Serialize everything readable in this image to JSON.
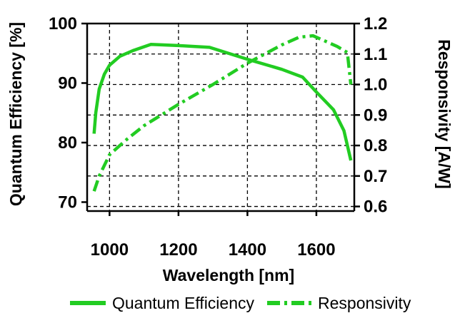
{
  "chart_data": {
    "type": "line",
    "xlabel": "Wavelength [nm]",
    "ylabel_left": "Quantum Efficiency [%]",
    "ylabel_right": "Responsivity [A/W]",
    "xlim": [
      935,
      1710
    ],
    "ylim_left": [
      68.5,
      100
    ],
    "ylim_right": [
      0.585,
      1.2
    ],
    "x_ticks": [
      1000,
      1200,
      1400,
      1600
    ],
    "y_ticks_left": [
      70,
      80,
      90,
      100
    ],
    "y_ticks_right": [
      0.6,
      0.7,
      0.8,
      0.9,
      1.0,
      1.1,
      1.2
    ],
    "y_tick_labels_right": [
      "0.6",
      "0.7",
      "0.8",
      "0.9",
      "1.0",
      "1.1",
      "1.2"
    ],
    "grid": true,
    "legend_position": "bottom",
    "series": [
      {
        "name": "Quantum Efficiency",
        "axis": "left",
        "style": "solid",
        "color": "#22cc22",
        "x": [
          955,
          960,
          970,
          985,
          1000,
          1030,
          1070,
          1120,
          1200,
          1290,
          1400,
          1500,
          1560,
          1600,
          1650,
          1680,
          1700
        ],
        "y": [
          81.5,
          85,
          89,
          91.5,
          93,
          94.5,
          95.5,
          96.5,
          96.3,
          96,
          94,
          92.3,
          91,
          88.5,
          85.5,
          82,
          77
        ]
      },
      {
        "name": "Responsivity",
        "axis": "right",
        "style": "dashdot",
        "color": "#22cc22",
        "x": [
          955,
          970,
          1000,
          1050,
          1100,
          1200,
          1300,
          1400,
          1500,
          1550,
          1590,
          1620,
          1660,
          1690,
          1700
        ],
        "y": [
          0.65,
          0.7,
          0.77,
          0.82,
          0.865,
          0.935,
          1.0,
          1.07,
          1.13,
          1.155,
          1.16,
          1.145,
          1.125,
          1.105,
          1.0
        ]
      }
    ]
  }
}
